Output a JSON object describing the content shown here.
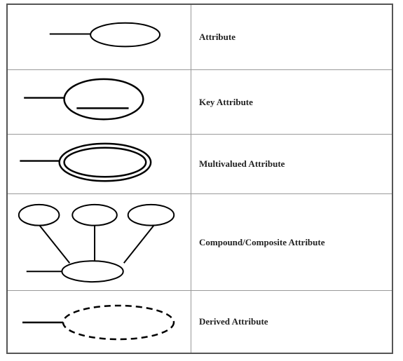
{
  "rows": [
    {
      "label": "Attribute",
      "symbol_icon": "attribute-ellipse-icon"
    },
    {
      "label": "Key Attribute",
      "symbol_icon": "key-attribute-ellipse-icon"
    },
    {
      "label": "Multivalued Attribute",
      "symbol_icon": "multivalued-double-ellipse-icon"
    },
    {
      "label": "Compound/Composite Attribute",
      "symbol_icon": "composite-attribute-tree-icon"
    },
    {
      "label": "Derived Attribute",
      "symbol_icon": "derived-dashed-ellipse-icon"
    }
  ],
  "colors": {
    "stroke": "#000000",
    "grid": "#999999",
    "border": "#555555",
    "label": "#222222"
  }
}
